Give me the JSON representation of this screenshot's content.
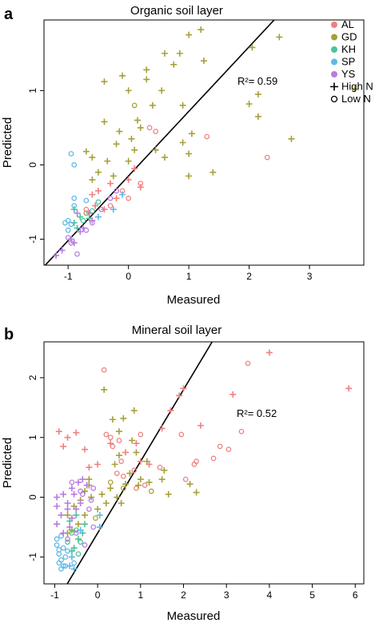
{
  "legend": [
    {
      "label": "AL",
      "color": "#f08080",
      "marker": "dot"
    },
    {
      "label": "GD",
      "color": "#a6a03a",
      "marker": "dot"
    },
    {
      "label": "KH",
      "color": "#4cc39a",
      "marker": "dot"
    },
    {
      "label": "SP",
      "color": "#5fb8e6",
      "marker": "dot"
    },
    {
      "label": "YS",
      "color": "#b77be0",
      "marker": "dot"
    },
    {
      "label": "High N",
      "color": "#000000",
      "marker": "plus"
    },
    {
      "label": "Low N",
      "color": "#000000",
      "marker": "circle"
    }
  ],
  "chart_data": [
    {
      "type": "scatter",
      "panel": "a",
      "title": "Organic soil layer",
      "xlabel": "Measured",
      "ylabel": "Predicted",
      "xlim": [
        -1.4,
        3.9
      ],
      "ylim": [
        -1.35,
        1.95
      ],
      "xticks": [
        -1,
        0,
        1,
        2,
        3
      ],
      "yticks": [
        -1,
        0,
        1
      ],
      "annotation": "R²= 0.59",
      "fit_line": {
        "intercept": -0.15,
        "slope": 0.87
      },
      "points": {
        "AL": {
          "high": [
            [
              -0.6,
              -0.4
            ],
            [
              -0.5,
              -0.35
            ],
            [
              -0.3,
              -0.25
            ],
            [
              0.0,
              -0.2
            ],
            [
              0.2,
              -0.3
            ],
            [
              -0.2,
              -0.45
            ],
            [
              -0.55,
              -0.55
            ],
            [
              -0.4,
              -0.6
            ],
            [
              0.1,
              -0.05
            ]
          ],
          "low": [
            [
              -0.1,
              -0.35
            ],
            [
              0.35,
              0.5
            ],
            [
              0.45,
              0.45
            ],
            [
              1.3,
              0.38
            ],
            [
              2.3,
              0.1
            ],
            [
              -0.3,
              -0.55
            ],
            [
              0.0,
              -0.45
            ],
            [
              -0.7,
              -0.6
            ],
            [
              0.2,
              -0.25
            ]
          ]
        },
        "GD": {
          "high": [
            [
              -0.4,
              1.12
            ],
            [
              1.0,
              1.75
            ],
            [
              1.2,
              1.82
            ],
            [
              2.5,
              1.72
            ],
            [
              2.05,
              1.58
            ],
            [
              3.75,
              1.02
            ],
            [
              1.25,
              1.4
            ],
            [
              0.6,
              1.5
            ],
            [
              0.85,
              1.5
            ],
            [
              0.75,
              1.35
            ],
            [
              0.3,
              1.28
            ],
            [
              -0.1,
              1.2
            ],
            [
              0.0,
              1.0
            ],
            [
              0.3,
              1.15
            ],
            [
              0.55,
              1.0
            ],
            [
              0.9,
              0.8
            ],
            [
              0.4,
              0.8
            ],
            [
              0.15,
              0.6
            ],
            [
              0.2,
              0.5
            ],
            [
              -0.4,
              0.58
            ],
            [
              -0.15,
              0.45
            ],
            [
              0.05,
              0.35
            ],
            [
              0.1,
              0.2
            ],
            [
              0.45,
              0.2
            ],
            [
              0.6,
              0.1
            ],
            [
              0.9,
              0.3
            ],
            [
              1.05,
              0.42
            ],
            [
              1.0,
              0.15
            ],
            [
              1.0,
              -0.15
            ],
            [
              1.4,
              -0.1
            ],
            [
              2.0,
              0.82
            ],
            [
              2.15,
              0.95
            ],
            [
              2.15,
              0.65
            ],
            [
              2.7,
              0.35
            ],
            [
              -0.7,
              0.18
            ],
            [
              -0.6,
              0.1
            ],
            [
              -0.35,
              0.05
            ],
            [
              -0.25,
              -0.15
            ],
            [
              -0.5,
              -0.1
            ],
            [
              -0.2,
              0.28
            ],
            [
              0.0,
              0.05
            ],
            [
              -0.6,
              -0.2
            ]
          ],
          "low": [
            [
              0.1,
              0.8
            ],
            [
              -0.7,
              -0.65
            ]
          ]
        },
        "KH": {
          "high": [
            [
              -0.9,
              -0.6
            ],
            [
              -0.8,
              -0.7
            ],
            [
              -0.85,
              -0.85
            ],
            [
              -0.65,
              -0.72
            ],
            [
              -0.9,
              -0.78
            ]
          ],
          "low": [
            [
              -0.6,
              -0.62
            ],
            [
              -0.75,
              -0.75
            ],
            [
              -0.5,
              -0.5
            ]
          ]
        },
        "SP": {
          "high": [
            [
              -0.1,
              -0.4
            ],
            [
              -0.25,
              -0.6
            ],
            [
              -0.5,
              -0.7
            ]
          ],
          "low": [
            [
              -1.0,
              -0.75
            ],
            [
              -1.05,
              -0.78
            ],
            [
              -0.95,
              -0.8
            ],
            [
              -1.0,
              -0.88
            ],
            [
              -0.9,
              -0.55
            ],
            [
              -0.9,
              -0.45
            ],
            [
              -0.95,
              0.15
            ],
            [
              -0.9,
              0.0
            ],
            [
              -0.7,
              -0.48
            ]
          ]
        },
        "YS": {
          "high": [
            [
              -1.2,
              -1.22
            ],
            [
              -1.1,
              -1.15
            ],
            [
              -0.95,
              -1.0
            ],
            [
              -0.9,
              -1.05
            ],
            [
              -0.75,
              -0.85
            ],
            [
              -0.8,
              -0.9
            ],
            [
              -0.6,
              -0.75
            ],
            [
              -0.65,
              -0.65
            ],
            [
              -0.85,
              -0.65
            ]
          ],
          "low": [
            [
              -1.0,
              -0.98
            ],
            [
              -0.95,
              -1.05
            ],
            [
              -0.85,
              -1.2
            ],
            [
              -0.7,
              -0.88
            ],
            [
              -0.6,
              -0.78
            ],
            [
              -0.3,
              -0.45
            ],
            [
              -0.2,
              -0.35
            ],
            [
              -0.45,
              -0.6
            ]
          ]
        }
      }
    },
    {
      "type": "scatter",
      "panel": "b",
      "title": "Mineral soil layer",
      "xlabel": "Measured",
      "ylabel": "Predicted",
      "xlim": [
        -1.25,
        6.2
      ],
      "ylim": [
        -1.45,
        2.6
      ],
      "xticks": [
        -1,
        0,
        1,
        2,
        3,
        4,
        5,
        6
      ],
      "yticks": [
        -1,
        0,
        1,
        2
      ],
      "annotation": "R²= 0.52",
      "fit_line": {
        "intercept": -0.6,
        "slope": 1.2
      },
      "points": {
        "AL": {
          "high": [
            [
              4.0,
              2.42
            ],
            [
              5.85,
              1.82
            ],
            [
              2.0,
              1.82
            ],
            [
              1.9,
              1.7
            ],
            [
              1.7,
              1.45
            ],
            [
              3.15,
              1.72
            ],
            [
              2.4,
              1.2
            ],
            [
              -0.9,
              1.1
            ],
            [
              -0.5,
              1.08
            ],
            [
              -0.7,
              1.0
            ],
            [
              -0.8,
              0.85
            ],
            [
              -0.3,
              0.8
            ],
            [
              0.3,
              0.9
            ],
            [
              0.9,
              0.9
            ],
            [
              1.0,
              0.6
            ],
            [
              0.65,
              0.75
            ],
            [
              1.5,
              1.15
            ],
            [
              1.2,
              0.55
            ],
            [
              -0.2,
              0.5
            ],
            [
              0.0,
              0.55
            ]
          ],
          "low": [
            [
              3.5,
              2.24
            ],
            [
              0.15,
              2.13
            ],
            [
              0.3,
              1.0
            ],
            [
              0.35,
              0.85
            ],
            [
              0.2,
              1.05
            ],
            [
              1.0,
              1.05
            ],
            [
              0.5,
              0.95
            ],
            [
              2.05,
              0.3
            ],
            [
              2.85,
              0.85
            ],
            [
              3.35,
              1.1
            ],
            [
              3.05,
              0.8
            ],
            [
              2.7,
              0.65
            ],
            [
              1.95,
              1.05
            ],
            [
              2.25,
              0.55
            ],
            [
              0.9,
              0.15
            ],
            [
              0.45,
              0.4
            ],
            [
              0.55,
              0.6
            ],
            [
              0.85,
              0.45
            ],
            [
              1.1,
              0.2
            ],
            [
              0.6,
              0.35
            ],
            [
              2.3,
              0.6
            ],
            [
              1.45,
              0.5
            ]
          ]
        },
        "GD": {
          "high": [
            [
              0.15,
              1.8
            ],
            [
              0.6,
              1.32
            ],
            [
              0.85,
              1.45
            ],
            [
              0.35,
              1.3
            ],
            [
              0.5,
              1.1
            ],
            [
              0.8,
              0.95
            ],
            [
              0.5,
              0.7
            ],
            [
              1.15,
              0.6
            ],
            [
              1.55,
              0.45
            ],
            [
              2.15,
              0.22
            ],
            [
              2.3,
              0.08
            ],
            [
              1.5,
              0.3
            ],
            [
              1.2,
              0.25
            ],
            [
              0.95,
              0.2
            ],
            [
              0.65,
              0.22
            ],
            [
              0.3,
              0.15
            ],
            [
              0.45,
              0.0
            ],
            [
              0.1,
              0.05
            ],
            [
              0.2,
              -0.1
            ],
            [
              0.0,
              -0.2
            ],
            [
              -0.15,
              0.0
            ],
            [
              -0.2,
              0.2
            ],
            [
              -0.3,
              0.1
            ],
            [
              -0.4,
              -0.05
            ],
            [
              -0.55,
              -0.15
            ],
            [
              -0.3,
              -0.3
            ],
            [
              -0.45,
              -0.45
            ],
            [
              -0.6,
              -0.55
            ],
            [
              -0.7,
              -0.6
            ],
            [
              0.55,
              -0.1
            ],
            [
              0.75,
              0.4
            ],
            [
              0.4,
              0.55
            ],
            [
              0.9,
              0.75
            ],
            [
              1.0,
              0.3
            ],
            [
              -0.2,
              0.3
            ],
            [
              1.65,
              0.05
            ],
            [
              -0.7,
              -0.3
            ]
          ],
          "low": [
            [
              0.6,
              0.15
            ],
            [
              1.25,
              0.1
            ],
            [
              0.3,
              0.25
            ],
            [
              -0.05,
              -0.35
            ]
          ]
        },
        "KH": {
          "high": [
            [
              -0.55,
              -0.85
            ],
            [
              -0.6,
              -0.9
            ],
            [
              -0.45,
              -0.7
            ],
            [
              -0.35,
              -0.6
            ],
            [
              -0.5,
              -0.3
            ],
            [
              -0.65,
              -0.4
            ],
            [
              -0.3,
              -0.45
            ]
          ],
          "low": [
            [
              -0.7,
              -0.75
            ],
            [
              -0.5,
              -0.55
            ],
            [
              -0.4,
              -0.75
            ],
            [
              -0.6,
              -0.6
            ],
            [
              -0.45,
              -0.95
            ]
          ]
        },
        "SP": {
          "high": [
            [
              -0.55,
              -1.2
            ],
            [
              -0.65,
              -1.15
            ],
            [
              -0.6,
              -1.0
            ],
            [
              0.05,
              -0.5
            ],
            [
              -0.4,
              -0.55
            ],
            [
              0.05,
              -0.3
            ]
          ],
          "low": [
            [
              -0.95,
              -0.8
            ],
            [
              -0.9,
              -0.95
            ],
            [
              -0.85,
              -1.05
            ],
            [
              -0.9,
              -1.1
            ],
            [
              -0.8,
              -1.15
            ],
            [
              -0.75,
              -1.15
            ],
            [
              -0.85,
              -1.2
            ],
            [
              -0.95,
              -0.7
            ],
            [
              -0.85,
              -0.65
            ],
            [
              -0.8,
              -0.85
            ],
            [
              -0.75,
              -1.0
            ],
            [
              -0.9,
              -0.88
            ],
            [
              -0.7,
              -0.9
            ],
            [
              -0.55,
              -1.1
            ]
          ]
        },
        "YS": {
          "high": [
            [
              -0.95,
              0.0
            ],
            [
              -0.8,
              0.05
            ],
            [
              -0.7,
              -0.1
            ],
            [
              -0.85,
              -0.3
            ],
            [
              -0.95,
              -0.45
            ],
            [
              -0.8,
              -0.6
            ],
            [
              -0.65,
              -0.5
            ],
            [
              -0.5,
              -0.2
            ],
            [
              -0.6,
              0.15
            ],
            [
              -0.35,
              0.3
            ],
            [
              -0.45,
              0.25
            ],
            [
              -0.25,
              0.2
            ],
            [
              -0.55,
              0.05
            ],
            [
              -0.4,
              -0.1
            ],
            [
              -0.7,
              -0.2
            ],
            [
              -0.95,
              -0.15
            ],
            [
              -0.6,
              -0.35
            ]
          ],
          "low": [
            [
              -0.3,
              -0.8
            ],
            [
              -0.1,
              -0.5
            ],
            [
              -0.2,
              -0.2
            ],
            [
              -0.7,
              -0.7
            ],
            [
              -0.5,
              -0.6
            ],
            [
              -0.4,
              0.1
            ],
            [
              -0.6,
              0.25
            ],
            [
              -0.35,
              0.05
            ],
            [
              -0.1,
              0.15
            ],
            [
              -0.15,
              -0.05
            ]
          ]
        }
      }
    }
  ]
}
